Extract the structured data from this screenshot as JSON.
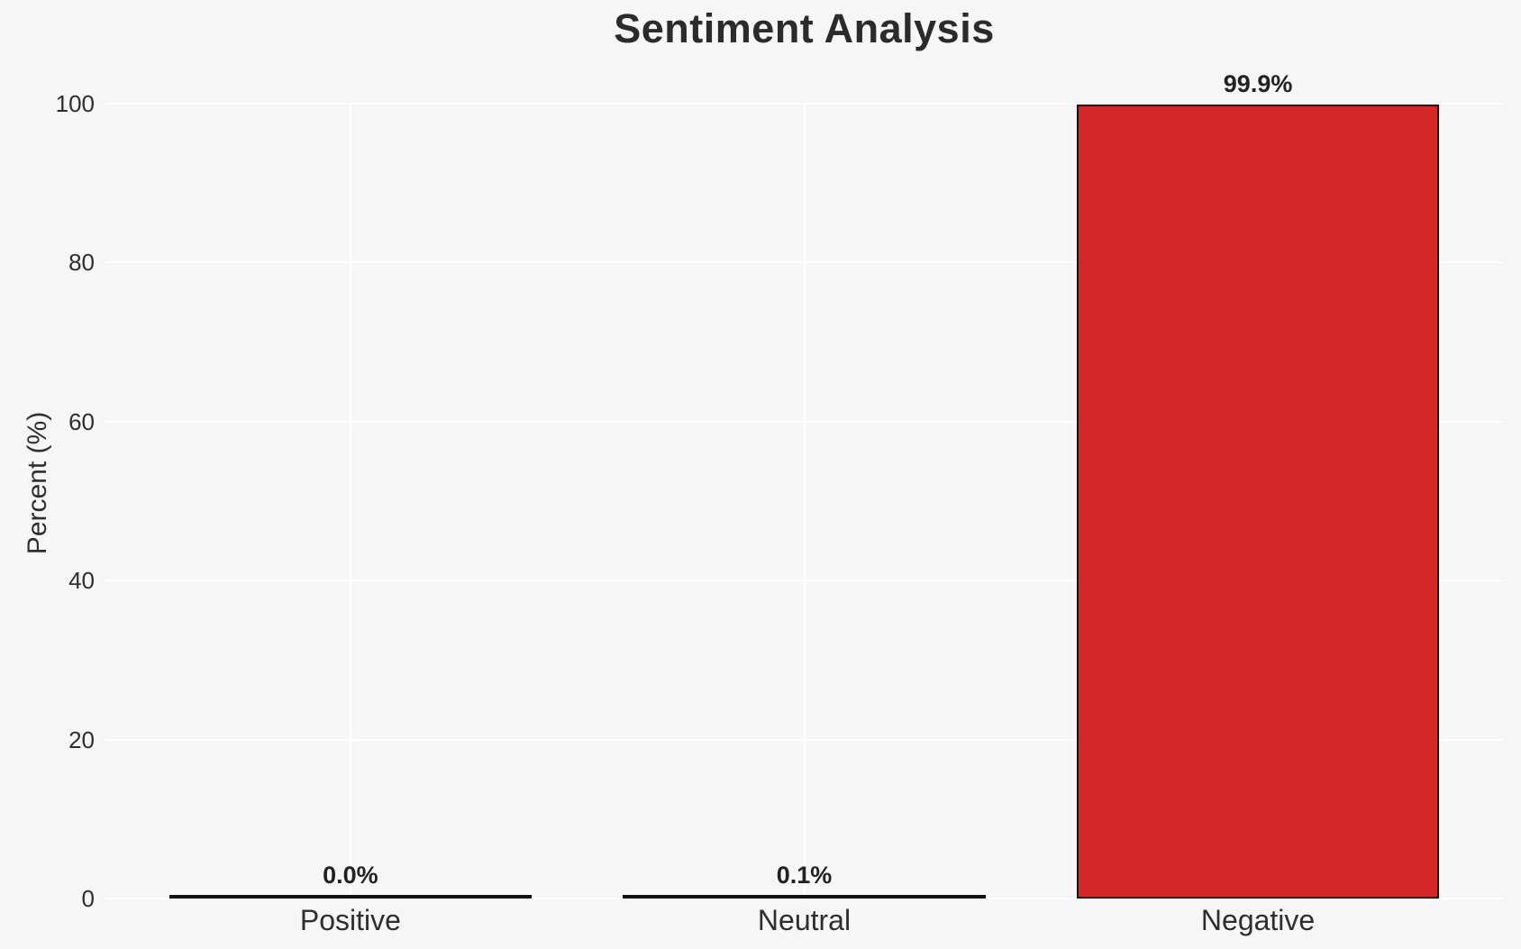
{
  "chart_data": {
    "type": "bar",
    "title": "Sentiment Analysis",
    "categories": [
      "Positive",
      "Neutral",
      "Negative"
    ],
    "values": [
      0.0,
      0.1,
      99.9
    ],
    "value_labels": [
      "0.0%",
      "0.1%",
      "99.9%"
    ],
    "xlabel": "",
    "ylabel": "Percent (%)",
    "ylim": [
      0,
      100
    ],
    "yticks": [
      0,
      20,
      40,
      60,
      80,
      100
    ],
    "ytick_labels": [
      "0",
      "20",
      "40",
      "60",
      "80",
      "100"
    ],
    "grid": true,
    "legend": "none",
    "colors": {
      "background": "#f6f6f7",
      "gridline": "#ffffff",
      "bar_fill": "#d62728",
      "bar_edge": "#111111",
      "text": "#2e2e2e",
      "title_text": "#2b2b2b",
      "value_label_text": "#222222"
    }
  }
}
